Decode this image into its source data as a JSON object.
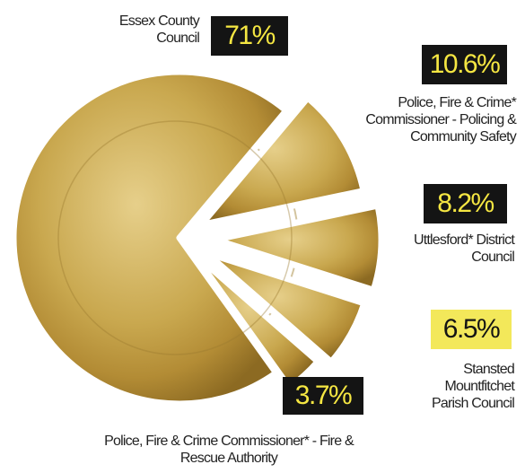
{
  "chart_data": {
    "type": "pie",
    "categories": [
      "Essex County Council",
      "Police, Fire & Crime* Commissioner - Policing & Community Safety",
      "Uttlesford* District Council",
      "Stansted Mountfitchet Parish Council",
      "Police, Fire & Crime Commissioner* - Fire & Rescue Authority"
    ],
    "values": [
      71,
      10.6,
      8.2,
      6.5,
      3.7
    ],
    "value_labels": [
      "71%",
      "10.6%",
      "8.2%",
      "6.5%",
      "3.7%"
    ],
    "label_box_colors": [
      "#141414",
      "#141414",
      "#141414",
      "#f3e85a",
      "#141414"
    ]
  }
}
